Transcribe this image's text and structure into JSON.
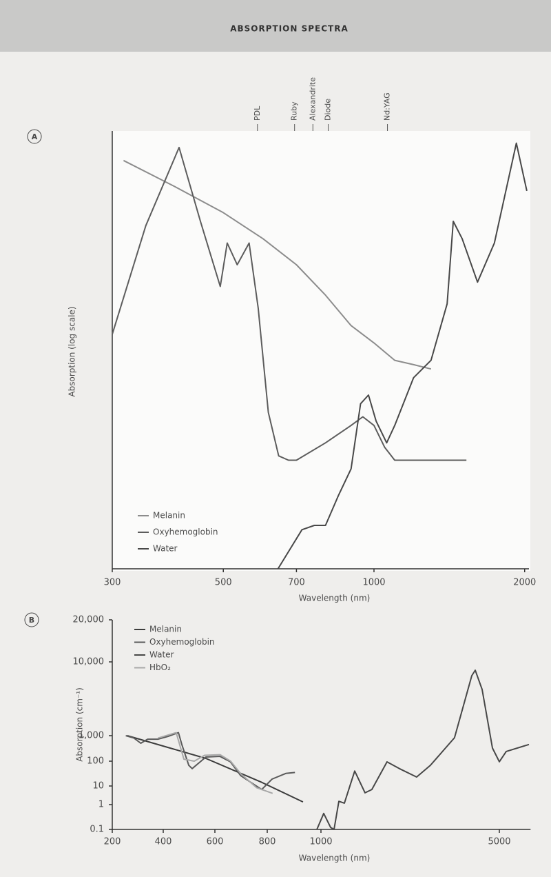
{
  "title": "ABSORPTION SPECTRA",
  "chart_data": [
    {
      "panel": "A",
      "type": "line",
      "x_label": "Wavelength (nm)",
      "y_label": "Absorption (log scale)",
      "x_log": true,
      "xlim": [
        300,
        2040
      ],
      "ylim": [
        0,
        100
      ],
      "xticks": [
        300,
        500,
        700,
        1000,
        2000
      ],
      "lasers": [
        {
          "label": "PDL",
          "value": 585
        },
        {
          "label": "Ruby",
          "value": 694
        },
        {
          "label": "Alexandrite",
          "value": 755
        },
        {
          "label": "Diode",
          "value": 810
        },
        {
          "label": "Nd:YAG",
          "value": 1064
        }
      ],
      "series": [
        {
          "name": "Melanin",
          "color": "#8c8c8c",
          "x": [
            316,
            400,
            500,
            600,
            700,
            800,
            900,
            1000,
            1100,
            1200,
            1300
          ],
          "values": [
            94,
            88,
            82,
            76,
            70,
            63,
            56,
            52,
            48,
            47,
            46
          ]
        },
        {
          "name": "Oxyhemoglobin",
          "color": "#5c5c5c",
          "x": [
            300,
            350,
            408,
            450,
            493,
            509,
            533,
            563,
            587,
            615,
            645,
            675,
            700,
            800,
            900,
            950,
            1000,
            1050,
            1100,
            1300,
            1530
          ],
          "values": [
            54,
            79,
            97,
            80,
            65,
            75,
            70,
            75,
            60,
            36,
            26,
            25,
            25,
            29,
            33,
            35,
            33,
            28,
            25,
            25,
            25
          ]
        },
        {
          "name": "Water",
          "color": "#484848",
          "x": [
            643,
            718,
            760,
            800,
            850,
            900,
            940,
            975,
            1010,
            1060,
            1100,
            1200,
            1300,
            1400,
            1440,
            1500,
            1610,
            1740,
            1925,
            2020
          ],
          "values": [
            0,
            9,
            10,
            10,
            17,
            23,
            38,
            40,
            34,
            29,
            33,
            44,
            48,
            61,
            80,
            76,
            66,
            75,
            98,
            87
          ]
        }
      ]
    },
    {
      "panel": "B",
      "type": "line",
      "x_label": "Wavelength (nm)",
      "y_label": "Absorption (cm⁻¹)",
      "x_log": false,
      "y_log": true,
      "xlim": [
        200,
        5700
      ],
      "ylim": [
        0.1,
        20000
      ],
      "xticks": [
        200,
        400,
        600,
        800,
        1000,
        5000
      ],
      "yticks": [
        0.1,
        1,
        10,
        100,
        {
          "value": 1000,
          "label": "1,000"
        },
        {
          "value": 10000,
          "label": "10,000"
        },
        {
          "value": 20000,
          "label": "20,000"
        }
      ],
      "series": [
        {
          "name": "Melanin",
          "color": "#3c3c3c",
          "x": [
            259,
            565,
            779,
            933
          ],
          "values": [
            1000,
            128,
            14,
            1.4
          ]
        },
        {
          "name": "Oxyhemoglobin",
          "color": "#5a5a5a",
          "x": [
            253,
            285,
            312,
            339,
            379,
            419,
            459,
            472,
            499,
            512,
            565,
            619,
            659,
            699,
            752,
            779,
            818,
            869,
            903
          ],
          "values": [
            1000,
            810,
            505,
            730,
            730,
            940,
            1100,
            450,
            68,
            50,
            145,
            155,
            95,
            26,
            11,
            6.5,
            19,
            32,
            35
          ]
        },
        {
          "name": "Water",
          "color": "#474747",
          "x": [
            985,
            1062,
            1216,
            1293,
            1401,
            1525,
            1756,
            1988,
            2142,
            2481,
            2759,
            3145,
            3454,
            3994,
            4383,
            4460,
            4614,
            4846,
            5000,
            5154,
            5664
          ],
          "values": [
            0.1,
            0.44,
            0.12,
            0.1,
            1.5,
            1.2,
            40,
            4.3,
            6.5,
            94,
            50,
            23,
            68,
            830,
            6500,
            7700,
            4230,
            327,
            95,
            240,
            450
          ]
        },
        {
          "name": "HbO₂",
          "color": "#a8a8a8",
          "x": [
            379,
            450,
            480,
            520,
            560,
            620,
            660,
            700,
            760,
            820
          ],
          "values": [
            800,
            1100,
            120,
            100,
            170,
            180,
            100,
            30,
            8,
            4
          ]
        }
      ]
    }
  ]
}
